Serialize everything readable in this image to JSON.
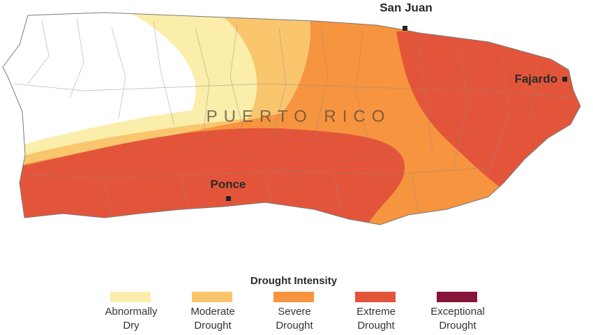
{
  "map": {
    "region_label": "PUERTO RICO",
    "cities": [
      {
        "name": "San Juan"
      },
      {
        "name": "Fajardo"
      },
      {
        "name": "Ponce"
      }
    ]
  },
  "legend": {
    "title": "Drought Intensity",
    "items": [
      {
        "label": [
          "Abnormally",
          "Dry"
        ],
        "color": "#fbedaa"
      },
      {
        "label": [
          "Moderate",
          "Drought"
        ],
        "color": "#f9c66e"
      },
      {
        "label": [
          "Severe",
          "Drought"
        ],
        "color": "#f6943f"
      },
      {
        "label": [
          "Extreme",
          "Drought"
        ],
        "color": "#e3553a"
      },
      {
        "label": [
          "Exceptional",
          "Drought"
        ],
        "color": "#861537"
      }
    ]
  }
}
